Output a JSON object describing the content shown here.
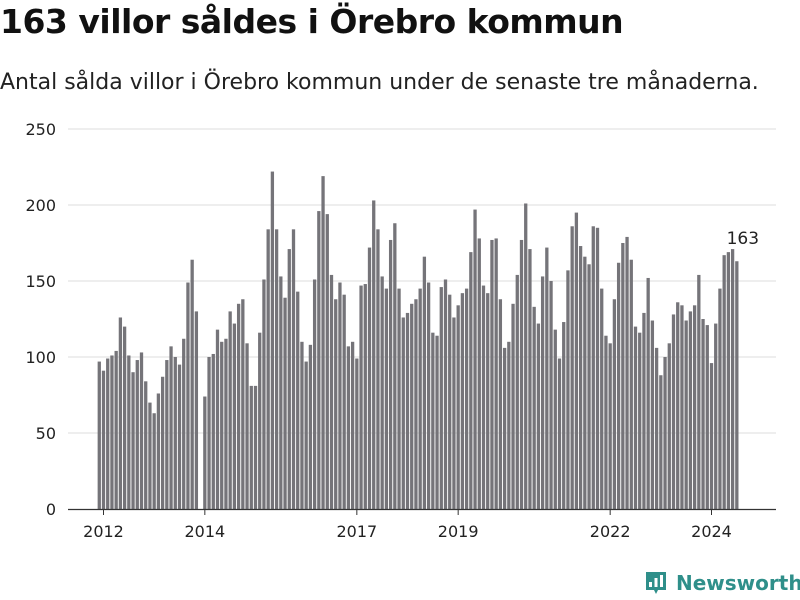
{
  "header": {
    "title": "163 villor såldes i Örebro kommun",
    "subtitle": "Antal sålda villor i Örebro kommun under de senaste tre månaderna."
  },
  "brand": {
    "name": "Newsworthy",
    "icon": "newsworthy-logo-icon",
    "color": "#2f8f8a"
  },
  "colors": {
    "bar": "#757479",
    "highlight": "#2b9c91",
    "grid": "#dddddd",
    "axis": "#333333"
  },
  "chart_data": {
    "type": "bar",
    "title": "",
    "xlabel": "",
    "ylabel": "",
    "ylim": [
      0,
      250
    ],
    "grid": true,
    "legend": "none",
    "y_ticks": [
      "0",
      "50",
      "100",
      "150",
      "200",
      "250"
    ],
    "x_ticks": [
      {
        "label": "2012",
        "date": "2012-01-01"
      },
      {
        "label": "2014",
        "date": "2014-01-01"
      },
      {
        "label": "2017",
        "date": "2017-01-01"
      },
      {
        "label": "2019",
        "date": "2019-01-01"
      },
      {
        "label": "2022",
        "date": "2022-01-01"
      },
      {
        "label": "2024",
        "date": "2024-01-01"
      }
    ],
    "start_month": "2011-12",
    "end_month": "2024-08",
    "values": [
      97,
      91,
      99,
      101,
      104,
      126,
      120,
      101,
      90,
      98,
      103,
      84,
      70,
      63,
      76,
      87,
      98,
      107,
      100,
      95,
      112,
      149,
      164,
      130,
      0,
      74,
      100,
      102,
      118,
      110,
      112,
      130,
      122,
      135,
      138,
      109,
      81,
      81,
      116,
      151,
      184,
      222,
      184,
      153,
      139,
      171,
      184,
      143,
      110,
      97,
      108,
      151,
      196,
      219,
      194,
      154,
      138,
      149,
      141,
      107,
      110,
      99,
      147,
      148,
      172,
      203,
      184,
      153,
      145,
      177,
      188,
      145,
      126,
      129,
      135,
      138,
      145,
      166,
      149,
      116,
      114,
      146,
      151,
      141,
      126,
      134,
      142,
      145,
      169,
      197,
      178,
      147,
      142,
      177,
      178,
      138,
      106,
      110,
      135,
      154,
      177,
      201,
      171,
      133,
      122,
      153,
      172,
      150,
      118,
      99,
      123,
      157,
      186,
      195,
      173,
      166,
      161,
      186,
      185,
      145,
      114,
      109,
      138,
      162,
      175,
      179,
      164,
      120,
      116,
      129,
      152,
      124,
      106,
      88,
      100,
      109,
      128,
      136,
      134,
      124,
      130,
      134,
      154,
      125,
      121,
      96,
      122,
      145,
      167,
      169,
      171,
      163
    ],
    "highlight": {
      "month": "2024-08",
      "value": 163,
      "label": "163"
    }
  }
}
